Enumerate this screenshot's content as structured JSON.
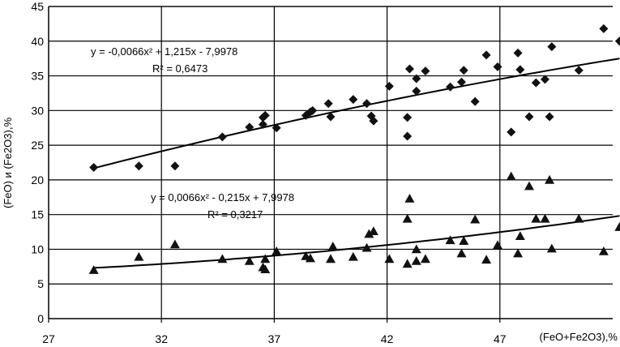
{
  "chart_data": {
    "type": "scatter",
    "xlabel": "(FeO+Fe2O3),%",
    "ylabel": "(FeO) и (Fe2O3),%",
    "xlim": [
      27,
      52
    ],
    "ylim": [
      0,
      45
    ],
    "x_ticks": [
      "27",
      "32",
      "37",
      "42",
      "47"
    ],
    "y_ticks": [
      "0",
      "5",
      "10",
      "15",
      "20",
      "25",
      "30",
      "35",
      "40",
      "45"
    ],
    "grid": true,
    "legend": "none",
    "series": [
      {
        "marker": "diamond",
        "color": "#111111",
        "points": [
          [
            29.0,
            21.8
          ],
          [
            31.0,
            22.0
          ],
          [
            32.6,
            22.0
          ],
          [
            34.7,
            26.2
          ],
          [
            35.9,
            27.6
          ],
          [
            36.5,
            28.0
          ],
          [
            36.5,
            29.0
          ],
          [
            36.6,
            29.3
          ],
          [
            37.1,
            27.5
          ],
          [
            38.4,
            29.3
          ],
          [
            38.6,
            29.8
          ],
          [
            38.7,
            30.0
          ],
          [
            39.4,
            31.0
          ],
          [
            39.5,
            29.1
          ],
          [
            40.5,
            31.6
          ],
          [
            41.1,
            31.0
          ],
          [
            41.3,
            29.2
          ],
          [
            41.4,
            28.5
          ],
          [
            42.1,
            33.5
          ],
          [
            42.9,
            26.3
          ],
          [
            42.9,
            29.0
          ],
          [
            43.0,
            36.0
          ],
          [
            43.3,
            32.8
          ],
          [
            43.3,
            34.6
          ],
          [
            43.7,
            35.7
          ],
          [
            44.8,
            33.4
          ],
          [
            45.3,
            34.1
          ],
          [
            45.4,
            35.8
          ],
          [
            45.9,
            31.3
          ],
          [
            46.4,
            38.0
          ],
          [
            46.9,
            36.3
          ],
          [
            47.5,
            26.9
          ],
          [
            47.8,
            38.3
          ],
          [
            47.9,
            35.9
          ],
          [
            48.3,
            29.1
          ],
          [
            48.6,
            34.0
          ],
          [
            49.0,
            34.5
          ],
          [
            49.2,
            29.1
          ],
          [
            49.3,
            39.2
          ],
          [
            50.5,
            35.8
          ],
          [
            51.6,
            41.8
          ],
          [
            52.3,
            40.0
          ]
        ],
        "trendline": {
          "equation": "y = -0,0066x² + 1,215x - 7,9978",
          "r2": "R² = 0,6473",
          "coeffs": [
            -0.0066,
            1.215,
            -7.9978
          ]
        }
      },
      {
        "marker": "triangle",
        "color": "#111111",
        "points": [
          [
            29.0,
            7.0
          ],
          [
            31.0,
            8.9
          ],
          [
            32.6,
            10.7
          ],
          [
            34.7,
            8.6
          ],
          [
            35.9,
            8.3
          ],
          [
            36.5,
            7.4
          ],
          [
            36.6,
            7.1
          ],
          [
            36.6,
            8.6
          ],
          [
            37.1,
            9.7
          ],
          [
            38.4,
            9.0
          ],
          [
            38.6,
            8.7
          ],
          [
            39.5,
            8.6
          ],
          [
            39.6,
            10.4
          ],
          [
            40.5,
            8.9
          ],
          [
            41.1,
            10.2
          ],
          [
            41.2,
            12.2
          ],
          [
            41.4,
            12.6
          ],
          [
            42.1,
            8.6
          ],
          [
            42.9,
            7.9
          ],
          [
            42.9,
            14.4
          ],
          [
            43.0,
            17.3
          ],
          [
            43.3,
            8.3
          ],
          [
            43.3,
            10.0
          ],
          [
            43.7,
            8.6
          ],
          [
            44.8,
            11.3
          ],
          [
            45.3,
            9.4
          ],
          [
            45.4,
            11.2
          ],
          [
            45.9,
            14.3
          ],
          [
            46.4,
            8.5
          ],
          [
            46.9,
            10.6
          ],
          [
            47.5,
            20.5
          ],
          [
            47.8,
            9.4
          ],
          [
            47.9,
            11.9
          ],
          [
            48.3,
            19.1
          ],
          [
            48.6,
            14.4
          ],
          [
            49.0,
            14.4
          ],
          [
            49.2,
            20.0
          ],
          [
            49.3,
            10.1
          ],
          [
            50.5,
            14.4
          ],
          [
            51.6,
            9.7
          ],
          [
            52.3,
            13.2
          ]
        ],
        "trendline": {
          "equation": "y = 0,0066x² - 0,215x + 7,9978",
          "r2": "R² = 0,3217",
          "coeffs": [
            0.0066,
            -0.215,
            7.9978
          ]
        }
      }
    ]
  }
}
